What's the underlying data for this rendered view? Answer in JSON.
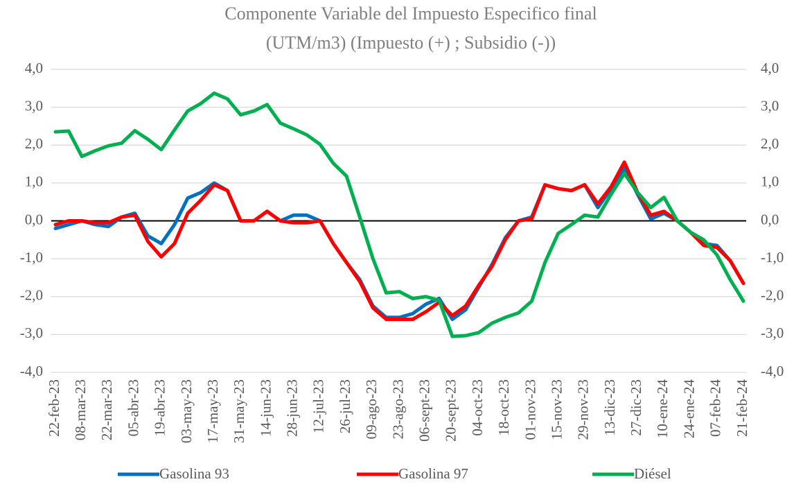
{
  "chart_data": {
    "type": "line",
    "title": "Componente Variable del Impuesto Especifico final",
    "subtitle": "(UTM/m3) (Impuesto (+) ; Subsidio (-))",
    "categories": [
      "22-feb-23",
      null,
      "08-mar-23",
      null,
      "22-mar-23",
      null,
      "05-abr-23",
      null,
      "19-abr-23",
      null,
      "03-may-23",
      null,
      "17-may-23",
      null,
      "31-may-23",
      null,
      "14-jun-23",
      null,
      "28-jun-23",
      null,
      "12-jul-23",
      null,
      "26-jul-23",
      null,
      "09-ago-23",
      null,
      "23-ago-23",
      null,
      "06-sept-23",
      null,
      "20-sept-23",
      null,
      "04-oct-23",
      null,
      "18-oct-23",
      null,
      "01-nov-23",
      null,
      "15-nov-23",
      null,
      "29-nov-23",
      null,
      "13-dic-23",
      null,
      "27-dic-23",
      null,
      "10-ene-24",
      null,
      "24-ene-24",
      null,
      "07-feb-24",
      null,
      "21-feb-24"
    ],
    "series": [
      {
        "name": "Gasolina 93",
        "color": "#0070c0",
        "values": [
          -0.2,
          -0.1,
          0.0,
          -0.1,
          -0.15,
          0.1,
          0.2,
          -0.4,
          -0.6,
          -0.1,
          0.6,
          0.75,
          1.0,
          0.8,
          0.0,
          0.0,
          0.25,
          0.0,
          0.15,
          0.15,
          0.0,
          -0.6,
          -1.1,
          -1.55,
          -2.25,
          -2.55,
          -2.55,
          -2.45,
          -2.2,
          -2.05,
          -2.6,
          -2.35,
          -1.75,
          -1.15,
          -0.45,
          0.0,
          0.1,
          0.95,
          0.85,
          0.8,
          0.95,
          0.35,
          0.85,
          1.4,
          0.7,
          0.05,
          0.2,
          0.0,
          -0.3,
          -0.6,
          -0.65,
          -1.05,
          -1.65
        ]
      },
      {
        "name": "Gasolina 97",
        "color": "#ff0000",
        "values": [
          -0.1,
          0.0,
          0.0,
          -0.05,
          -0.05,
          0.1,
          0.15,
          -0.55,
          -0.95,
          -0.6,
          0.2,
          0.55,
          0.95,
          0.8,
          0.0,
          0.0,
          0.25,
          0.0,
          -0.05,
          -0.05,
          0.0,
          -0.6,
          -1.1,
          -1.6,
          -2.3,
          -2.6,
          -2.6,
          -2.6,
          -2.4,
          -2.15,
          -2.5,
          -2.25,
          -1.7,
          -1.2,
          -0.5,
          0.0,
          0.05,
          0.95,
          0.85,
          0.8,
          0.95,
          0.45,
          0.9,
          1.55,
          0.75,
          0.15,
          0.25,
          0.0,
          -0.3,
          -0.65,
          -0.7,
          -1.05,
          -1.65
        ]
      },
      {
        "name": "Diésel",
        "color": "#00b050",
        "values": [
          2.35,
          2.37,
          1.7,
          1.85,
          1.98,
          2.05,
          2.38,
          2.15,
          1.88,
          2.4,
          2.9,
          3.1,
          3.37,
          3.22,
          2.8,
          2.9,
          3.07,
          2.58,
          2.43,
          2.27,
          2.02,
          1.52,
          1.18,
          0.1,
          -1.0,
          -1.9,
          -1.87,
          -2.05,
          -2.0,
          -2.1,
          -3.05,
          -3.03,
          -2.95,
          -2.7,
          -2.55,
          -2.43,
          -2.12,
          -1.1,
          -0.33,
          -0.1,
          0.15,
          0.1,
          0.7,
          1.25,
          0.75,
          0.35,
          0.62,
          0.0,
          -0.3,
          -0.5,
          -0.9,
          -1.55,
          -2.12
        ]
      }
    ],
    "ylim": [
      -4,
      4
    ],
    "yticks": [
      {
        "value": -4,
        "label": "-4,0"
      },
      {
        "value": -3,
        "label": "-3,0"
      },
      {
        "value": -2,
        "label": "-2,0"
      },
      {
        "value": -1,
        "label": "-1,0"
      },
      {
        "value": 0,
        "label": "0,0"
      },
      {
        "value": 1,
        "label": "1,0"
      },
      {
        "value": 2,
        "label": "2,0"
      },
      {
        "value": 3,
        "label": "3,0"
      },
      {
        "value": 4,
        "label": "4,0"
      }
    ],
    "y2lim": [
      -4,
      4
    ],
    "y2ticks": [
      {
        "value": -4,
        "label": "-4,0"
      },
      {
        "value": -3,
        "label": "-3,0"
      },
      {
        "value": -2,
        "label": "-2,0"
      },
      {
        "value": -1,
        "label": "-1,0"
      },
      {
        "value": 0,
        "label": "0,0"
      },
      {
        "value": 1,
        "label": "1,0"
      },
      {
        "value": 2,
        "label": "2,0"
      },
      {
        "value": 3,
        "label": "3,0"
      },
      {
        "value": 4,
        "label": "4,0"
      }
    ],
    "grid": true,
    "legend": "bottom"
  }
}
